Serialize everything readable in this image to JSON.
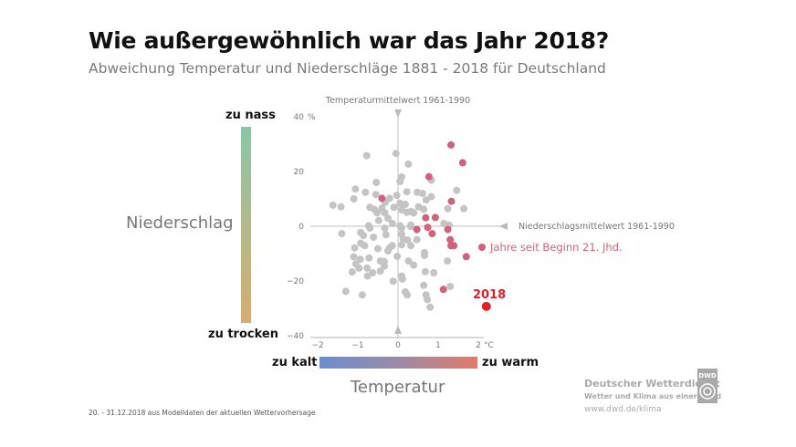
{
  "title": "Wie außergewöhnlich war das Jahr 2018?",
  "subtitle": "Abweichung Temperatur und Niederschläge 1881 - 2018 für Deutschland",
  "chart_data": {
    "type": "scatter",
    "xlabel": "Temperatur",
    "ylabel": "Niederschlag",
    "x_unit": "°C",
    "y_unit": "%",
    "xlim": [
      -2,
      2
    ],
    "ylim": [
      -40,
      40
    ],
    "x_ticks": [
      "−2",
      "−1",
      "0",
      "1",
      "2"
    ],
    "y_ticks": [
      "40",
      "20",
      "0",
      "−20",
      "−40"
    ],
    "x_ref_label": "Temperaturmittelwert 1961-1990",
    "y_ref_label": "Niederschlagsmittelwert 1961-1990",
    "legend_21st": "Jahre seit Beginn 21. Jhd.",
    "highlight_label": "2018",
    "highlight_point": {
      "x": 2.2,
      "y": -29.3
    },
    "colors": {
      "grey": "#c4c4c4",
      "21st": "#d0627c",
      "2018": "#e0202a"
    },
    "series_21st": [
      {
        "x": 1.32,
        "y": 29.7
      },
      {
        "x": 1.61,
        "y": 23.2
      },
      {
        "x": 0.77,
        "y": 18.1
      },
      {
        "x": -0.4,
        "y": 10.2
      },
      {
        "x": 1.33,
        "y": 9.1
      },
      {
        "x": 0.69,
        "y": 3.1
      },
      {
        "x": 0.93,
        "y": 3.2
      },
      {
        "x": 0.47,
        "y": -1.2
      },
      {
        "x": 0.74,
        "y": -0.4
      },
      {
        "x": 0.85,
        "y": -2.7
      },
      {
        "x": 1.24,
        "y": -1.2
      },
      {
        "x": 1.3,
        "y": -4.9
      },
      {
        "x": 1.32,
        "y": -7.1
      },
      {
        "x": 1.39,
        "y": -7.1
      },
      {
        "x": 1.7,
        "y": -11.1
      },
      {
        "x": 1.13,
        "y": -23.1
      }
    ],
    "series_other": [
      {
        "x": -0.78,
        "y": 25.8
      },
      {
        "x": -0.05,
        "y": 26.6
      },
      {
        "x": 0.26,
        "y": 22.7
      },
      {
        "x": 0.09,
        "y": 18
      },
      {
        "x": 0.05,
        "y": 16.3
      },
      {
        "x": 0.83,
        "y": 16.8
      },
      {
        "x": -0.54,
        "y": 16
      },
      {
        "x": -1.06,
        "y": 13.6
      },
      {
        "x": -0.81,
        "y": 12.4
      },
      {
        "x": -0.55,
        "y": 11.6
      },
      {
        "x": -1.1,
        "y": 10
      },
      {
        "x": -1.62,
        "y": 7.7
      },
      {
        "x": -1.42,
        "y": 7.1
      },
      {
        "x": 1.46,
        "y": 13.1
      },
      {
        "x": 1.64,
        "y": 6.4
      },
      {
        "x": 1.24,
        "y": 6.4
      },
      {
        "x": -0.21,
        "y": 10.2
      },
      {
        "x": -0.03,
        "y": 11.3
      },
      {
        "x": 0.22,
        "y": 12.6
      },
      {
        "x": 0.48,
        "y": 12.4
      },
      {
        "x": 0.61,
        "y": 12
      },
      {
        "x": 0.7,
        "y": 9.6
      },
      {
        "x": 0.83,
        "y": 10.8
      },
      {
        "x": 0.05,
        "y": 8.4
      },
      {
        "x": 0.18,
        "y": 8
      },
      {
        "x": -0.1,
        "y": 6.9
      },
      {
        "x": -0.32,
        "y": 8.7
      },
      {
        "x": -0.7,
        "y": 6.9
      },
      {
        "x": -0.59,
        "y": 6.2
      },
      {
        "x": -0.4,
        "y": 6.6
      },
      {
        "x": 0.51,
        "y": 7.1
      },
      {
        "x": 0.64,
        "y": 6.2
      },
      {
        "x": 0.09,
        "y": 6
      },
      {
        "x": 0.22,
        "y": 5.1
      },
      {
        "x": 0.32,
        "y": 5.4
      },
      {
        "x": 0.39,
        "y": 4.9
      },
      {
        "x": -0.52,
        "y": 4.9
      },
      {
        "x": -0.33,
        "y": 4.9
      },
      {
        "x": -0.48,
        "y": 2.1
      },
      {
        "x": -0.25,
        "y": 2.9
      },
      {
        "x": -0.14,
        "y": 1
      },
      {
        "x": 0.05,
        "y": 0.2
      },
      {
        "x": 0.32,
        "y": 0.4
      },
      {
        "x": -0.73,
        "y": 0.2
      },
      {
        "x": 1.14,
        "y": 1
      },
      {
        "x": 1.27,
        "y": 0.4
      },
      {
        "x": -1.4,
        "y": -2.7
      },
      {
        "x": -0.93,
        "y": -2.3
      },
      {
        "x": -0.86,
        "y": -3.4
      },
      {
        "x": -0.7,
        "y": -0.7
      },
      {
        "x": -0.33,
        "y": -0.7
      },
      {
        "x": 0.09,
        "y": -0.7
      },
      {
        "x": 0.32,
        "y": -0.1
      },
      {
        "x": -0.61,
        "y": -4
      },
      {
        "x": -0.3,
        "y": -3.1
      },
      {
        "x": 0.09,
        "y": -2.9
      },
      {
        "x": 0.13,
        "y": -4.6
      },
      {
        "x": 0.24,
        "y": -5.1
      },
      {
        "x": 0.47,
        "y": -4.9
      },
      {
        "x": 0.32,
        "y": -7.1
      },
      {
        "x": 0.09,
        "y": -6.8
      },
      {
        "x": -0.93,
        "y": -6.2
      },
      {
        "x": -0.83,
        "y": -7.1
      },
      {
        "x": -1.08,
        "y": -7.9
      },
      {
        "x": -0.5,
        "y": -8.2
      },
      {
        "x": -0.21,
        "y": -7.9
      },
      {
        "x": -0.14,
        "y": -7.1
      },
      {
        "x": -0.25,
        "y": -9
      },
      {
        "x": 0.66,
        "y": -9.6
      },
      {
        "x": 0.66,
        "y": -10.7
      },
      {
        "x": -1.1,
        "y": -11.2
      },
      {
        "x": -0.94,
        "y": -12.1
      },
      {
        "x": -0.72,
        "y": -11.6
      },
      {
        "x": -0.02,
        "y": -11
      },
      {
        "x": -0.44,
        "y": -12.7
      },
      {
        "x": -0.34,
        "y": -12.9
      },
      {
        "x": -1.05,
        "y": -13.8
      },
      {
        "x": 0.26,
        "y": -12.7
      },
      {
        "x": 0.39,
        "y": -14.2
      },
      {
        "x": 1.23,
        "y": -12.7
      },
      {
        "x": -0.34,
        "y": -14.6
      },
      {
        "x": -0.97,
        "y": -15.3
      },
      {
        "x": -0.77,
        "y": -15.3
      },
      {
        "x": -1.14,
        "y": -16.7
      },
      {
        "x": -0.76,
        "y": -18.2
      },
      {
        "x": -0.63,
        "y": -17
      },
      {
        "x": -0.44,
        "y": -16.4
      },
      {
        "x": 0.68,
        "y": -16.6
      },
      {
        "x": 0.89,
        "y": -17
      },
      {
        "x": 0.09,
        "y": -18.2
      },
      {
        "x": 0.11,
        "y": -19.3
      },
      {
        "x": -0.12,
        "y": -20.1
      },
      {
        "x": 0.64,
        "y": -21.6
      },
      {
        "x": 1.3,
        "y": -22
      },
      {
        "x": -1.3,
        "y": -23.8
      },
      {
        "x": -0.89,
        "y": -25.1
      },
      {
        "x": 0.18,
        "y": -24
      },
      {
        "x": 0.23,
        "y": -25.1
      },
      {
        "x": 0.7,
        "y": -25.1
      },
      {
        "x": 0.73,
        "y": -26.8
      },
      {
        "x": 0.8,
        "y": -29.6
      }
    ],
    "grid": false
  },
  "scale": {
    "wet": "zu nass",
    "dry": "zu trocken",
    "cold": "zu kalt",
    "warm": "zu warm"
  },
  "footnote": "20. - 31.12.2018 aus Modelldaten der aktuellen Wettervorhersage",
  "brand": {
    "name": "Deutscher Wetterdienst",
    "tagline": "Wetter und Klima aus einer Hand",
    "url": "www.dwd.de/klima",
    "logo_text": "DWD"
  }
}
